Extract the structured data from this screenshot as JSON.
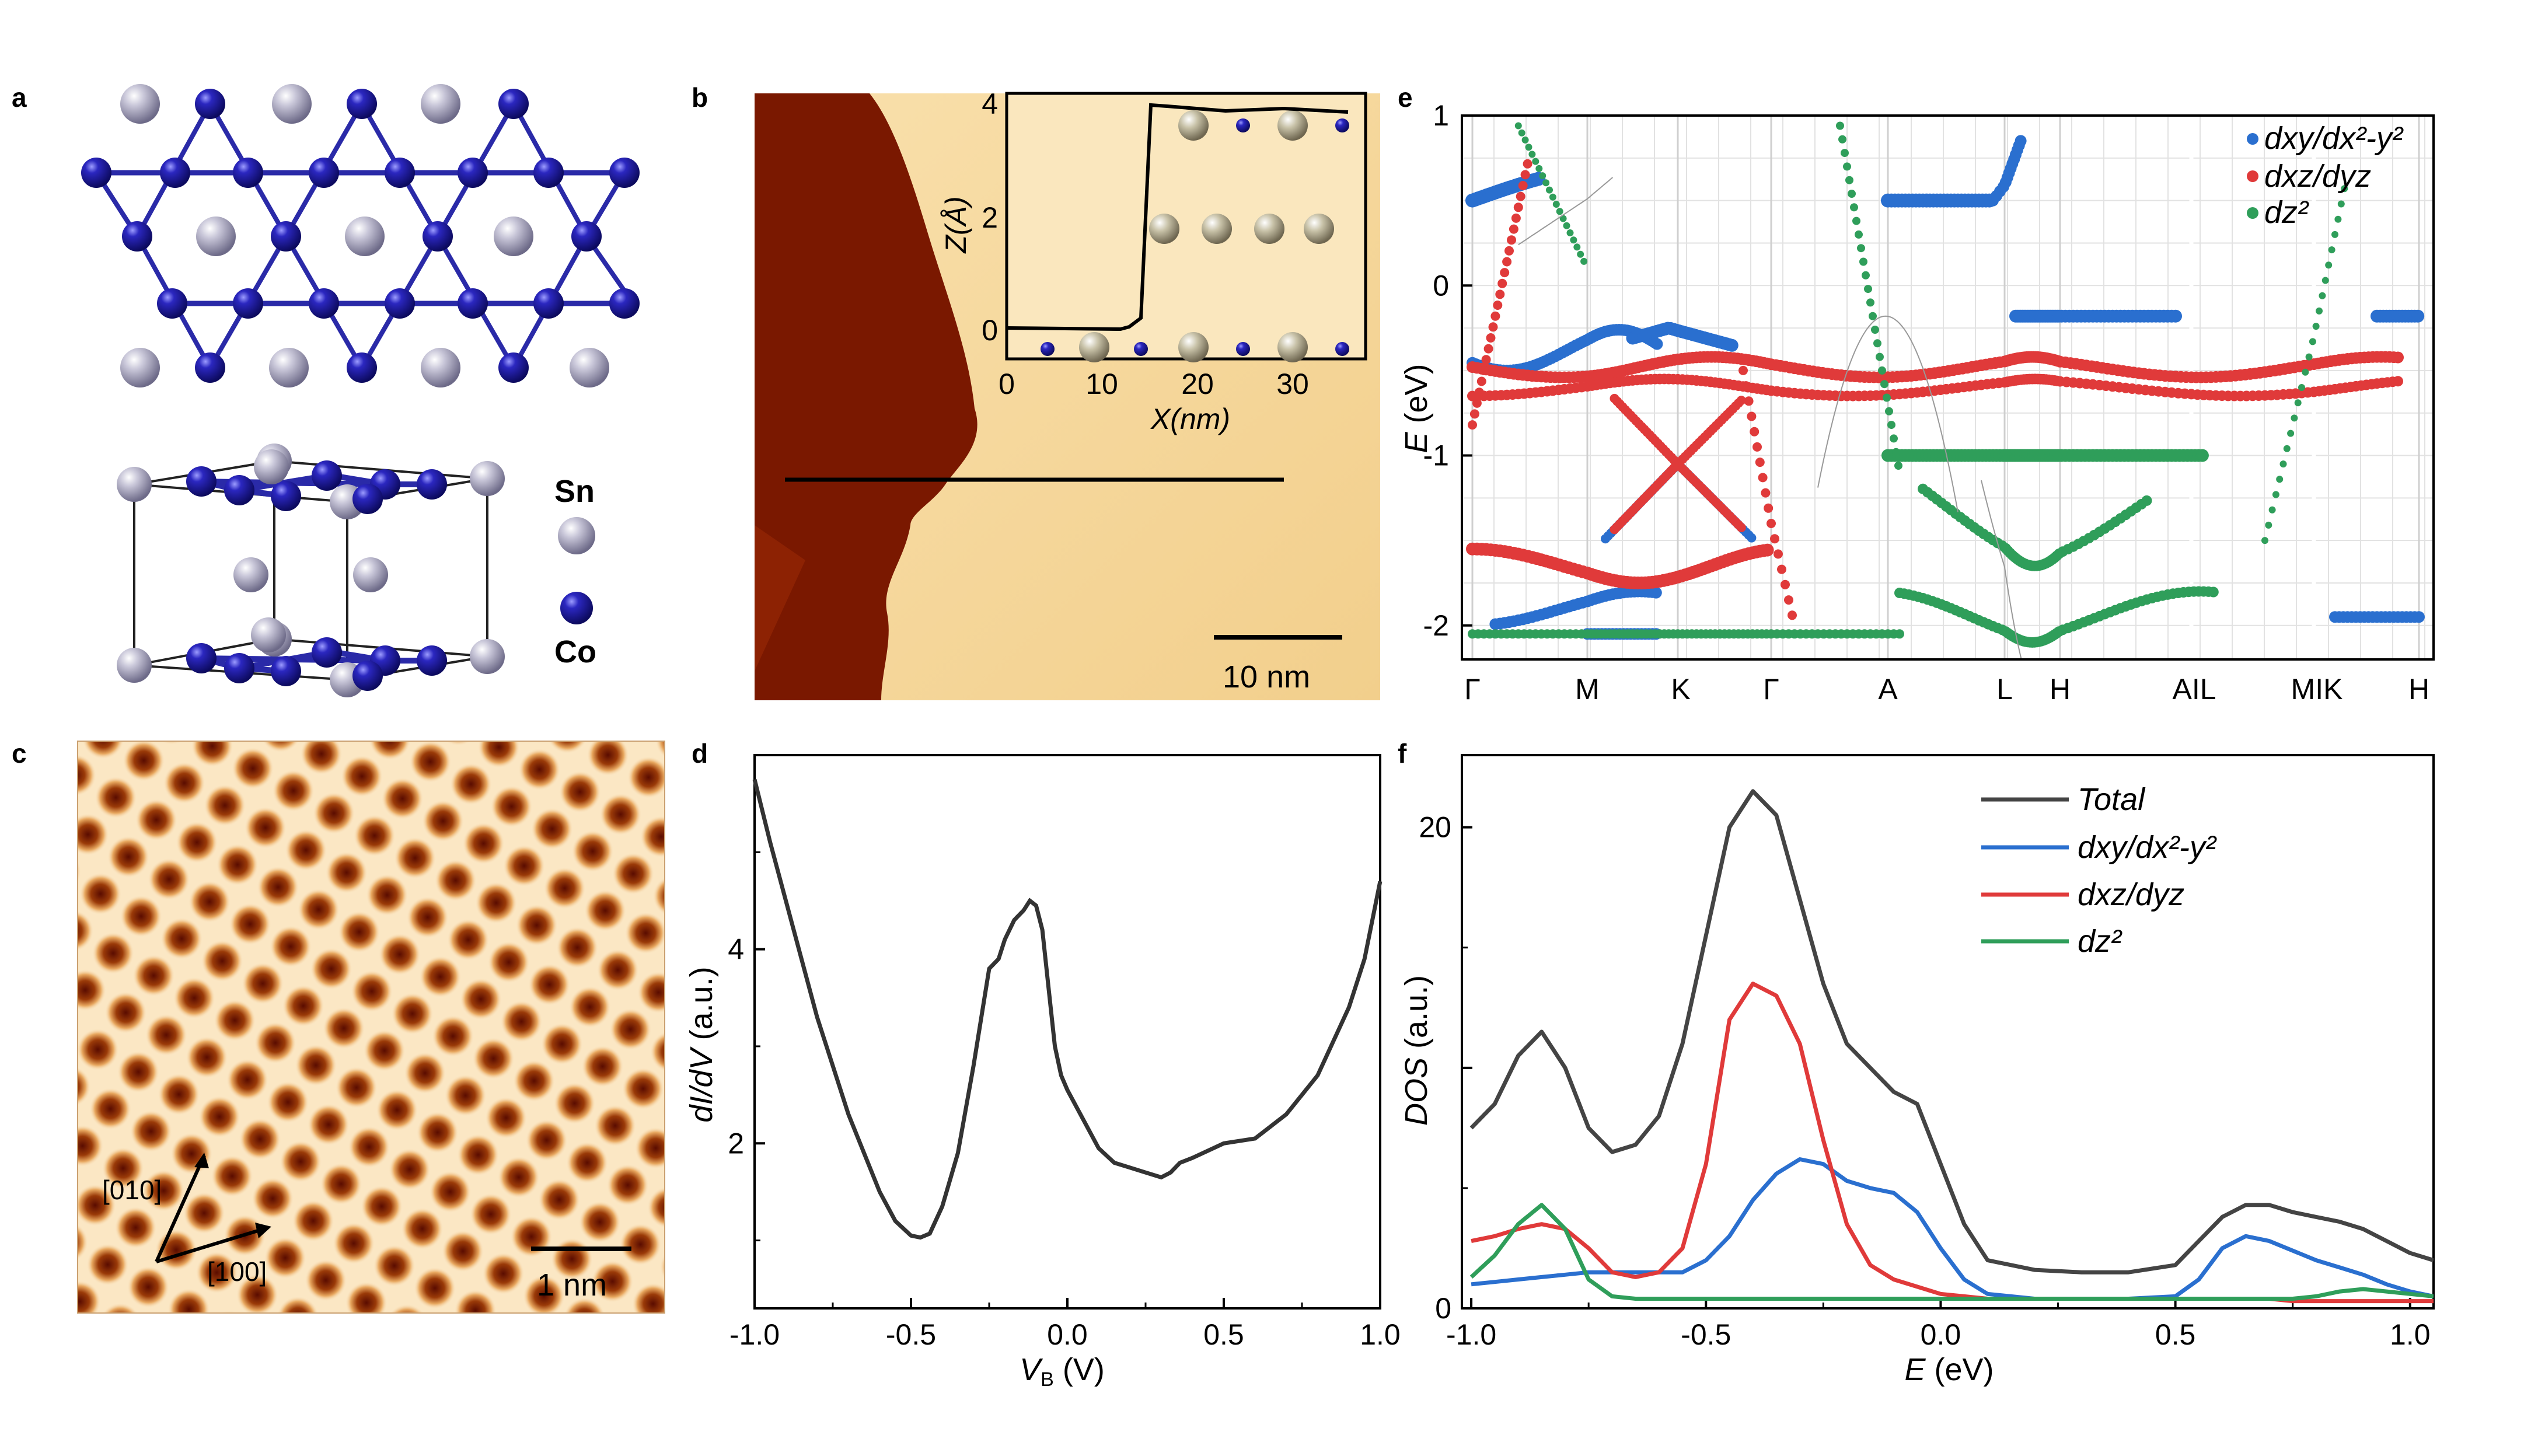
{
  "panel_labels": {
    "a": "a",
    "b": "b",
    "c": "c",
    "d": "d",
    "e": "e",
    "f": "f"
  },
  "panel_a": {
    "legend_sn": "Sn",
    "legend_co": "Co",
    "colors": {
      "sn": "#a9a7bf",
      "co": "#1f1aa0",
      "bond": "#2a2aa8"
    }
  },
  "panel_b": {
    "scale_bar": "10 nm",
    "inset": {
      "xlabel": "X(nm)",
      "ylabel": "Z(Å)",
      "xticks": [
        "0",
        "10",
        "20",
        "30"
      ],
      "yticks": [
        "0",
        "2",
        "4"
      ]
    },
    "colors": {
      "terrace_low": "#7a1800",
      "terrace_high": "#f5d9a0"
    }
  },
  "panel_c": {
    "scale_bar": "1 nm",
    "dir1": "[010]",
    "dir2": "[100]"
  },
  "panel_d": {
    "chart_data": {
      "type": "line",
      "xlabel": "V_B (V)",
      "ylabel": "dI/dV (a.u.)",
      "xlim": [
        -1.0,
        1.0
      ],
      "ylim": [
        0.3,
        6.0
      ],
      "xticks": [
        "-1.0",
        "-0.5",
        "0.0",
        "0.5",
        "1.0"
      ],
      "yticks": [
        "2",
        "4"
      ],
      "x": [
        -1.0,
        -0.95,
        -0.9,
        -0.85,
        -0.8,
        -0.75,
        -0.7,
        -0.65,
        -0.6,
        -0.55,
        -0.5,
        -0.47,
        -0.44,
        -0.4,
        -0.35,
        -0.3,
        -0.25,
        -0.22,
        -0.2,
        -0.17,
        -0.14,
        -0.12,
        -0.1,
        -0.08,
        -0.06,
        -0.04,
        -0.02,
        0.0,
        0.05,
        0.1,
        0.15,
        0.2,
        0.25,
        0.3,
        0.33,
        0.36,
        0.4,
        0.5,
        0.6,
        0.7,
        0.8,
        0.9,
        0.95,
        1.0
      ],
      "y": [
        5.75,
        5.1,
        4.5,
        3.9,
        3.3,
        2.8,
        2.3,
        1.9,
        1.5,
        1.2,
        1.05,
        1.03,
        1.07,
        1.35,
        1.9,
        2.8,
        3.8,
        3.9,
        4.1,
        4.3,
        4.4,
        4.5,
        4.45,
        4.2,
        3.6,
        3.0,
        2.7,
        2.55,
        2.25,
        1.95,
        1.8,
        1.75,
        1.7,
        1.65,
        1.7,
        1.8,
        1.85,
        2.0,
        2.05,
        2.3,
        2.7,
        3.4,
        3.9,
        4.7
      ],
      "colors": {
        "line": "#333333"
      }
    },
    "xlabel_main": "V",
    "xlabel_sub": "B",
    "xlabel_unit": " (V)",
    "ylabel_text": "dI/dV",
    "ylabel_unit": " (a.u.)"
  },
  "panel_e": {
    "chart_data": {
      "type": "scatter",
      "ylabel": "E (eV)",
      "ylim": [
        -2.2,
        1.0
      ],
      "yticks": [
        "1",
        "0",
        "-1",
        "-2"
      ],
      "kpoints": [
        "Γ",
        "M",
        "K",
        "Γ",
        "A",
        "L",
        "H",
        "A|L",
        "M|K",
        "H"
      ],
      "legend": [
        "dxy/dx²-y²",
        "dxz/dyz",
        "dz²"
      ],
      "colors": {
        "dxy": "#2a6fcf",
        "dxz": "#e03a3a",
        "dz2": "#2f9e5a",
        "grid": "#d8d8d8"
      },
      "series": [
        {
          "name": "dxy/dx²-y²",
          "values": [
            [
              0,
              0.5
            ],
            [
              0.4,
              0.55
            ],
            [
              0.8,
              0.6
            ],
            [
              2.2,
              -0.2
            ],
            [
              2.6,
              -0.22
            ],
            [
              4.0,
              -0.35
            ],
            [
              4.2,
              0.5
            ],
            [
              4.8,
              0.5
            ],
            [
              6.0,
              -0.18
            ],
            [
              6.4,
              -0.18
            ],
            [
              6.8,
              -0.25
            ],
            [
              8.2,
              -0.17
            ],
            [
              8.8,
              -0.17
            ]
          ]
        },
        {
          "name": "dxz/dyz",
          "values": [
            [
              0,
              -0.45
            ],
            [
              1.2,
              -0.55
            ],
            [
              2.0,
              -0.5
            ],
            [
              3.0,
              -0.5
            ],
            [
              4.0,
              -0.55
            ],
            [
              5.0,
              -0.6
            ],
            [
              6.0,
              -0.6
            ],
            [
              7.0,
              -0.55
            ],
            [
              8.0,
              -0.5
            ],
            [
              8.8,
              -0.55
            ]
          ]
        },
        {
          "name": "dz²",
          "values": [
            [
              4.2,
              -1.0
            ],
            [
              5.0,
              -1.0
            ],
            [
              6.0,
              -1.0
            ],
            [
              6.5,
              -1.0
            ],
            [
              7.0,
              -1.0
            ],
            [
              4.2,
              -2.1
            ],
            [
              6.0,
              -1.9
            ],
            [
              7.0,
              -1.8
            ]
          ]
        }
      ]
    },
    "ylabel_main": "E",
    "ylabel_unit": " (eV)",
    "legend_labels": {
      "dxy": "dxy/dx²-y²",
      "dxz": "dxz/dyz",
      "dz2": "dz²"
    },
    "kpoint_labels": [
      "Γ",
      "M",
      "K",
      "Γ",
      "A",
      "L",
      "H",
      "AIL",
      "MIK",
      "H"
    ]
  },
  "panel_f": {
    "chart_data": {
      "type": "line",
      "xlabel": "E (eV)",
      "ylabel": "DOS (a.u.)",
      "xlim": [
        -1.02,
        1.05
      ],
      "ylim": [
        0,
        23
      ],
      "xticks": [
        "-1.0",
        "-0.5",
        "0.0",
        "0.5",
        "1.0"
      ],
      "yticks": [
        "0",
        "10",
        "20"
      ],
      "x": [
        -1.0,
        -0.95,
        -0.9,
        -0.85,
        -0.8,
        -0.75,
        -0.7,
        -0.65,
        -0.6,
        -0.55,
        -0.5,
        -0.45,
        -0.4,
        -0.35,
        -0.3,
        -0.25,
        -0.2,
        -0.15,
        -0.1,
        -0.05,
        0.0,
        0.05,
        0.1,
        0.2,
        0.3,
        0.4,
        0.5,
        0.55,
        0.6,
        0.65,
        0.7,
        0.75,
        0.8,
        0.85,
        0.9,
        0.95,
        1.0,
        1.05
      ],
      "series": [
        {
          "name": "Total",
          "values": [
            7.5,
            8.5,
            10.5,
            11.5,
            10.0,
            7.5,
            6.5,
            6.8,
            8.0,
            11.0,
            15.5,
            20.0,
            21.5,
            20.5,
            17.0,
            13.5,
            11.0,
            10.0,
            9.0,
            8.5,
            6.0,
            3.5,
            2.0,
            1.6,
            1.5,
            1.5,
            1.8,
            2.8,
            3.8,
            4.3,
            4.3,
            4.0,
            3.8,
            3.6,
            3.3,
            2.8,
            2.3,
            2.0
          ]
        },
        {
          "name": "dxy/dx²-y²",
          "values": [
            1.0,
            1.1,
            1.2,
            1.3,
            1.4,
            1.5,
            1.5,
            1.5,
            1.5,
            1.5,
            2.0,
            3.0,
            4.5,
            5.6,
            6.2,
            6.0,
            5.3,
            5.0,
            4.8,
            4.0,
            2.5,
            1.2,
            0.6,
            0.4,
            0.4,
            0.4,
            0.5,
            1.2,
            2.5,
            3.0,
            2.8,
            2.4,
            2.0,
            1.7,
            1.4,
            1.0,
            0.7,
            0.5
          ]
        },
        {
          "name": "dxz/dyz",
          "values": [
            2.8,
            3.0,
            3.3,
            3.5,
            3.3,
            2.5,
            1.5,
            1.3,
            1.5,
            2.5,
            6.0,
            12.0,
            13.5,
            13.0,
            11.0,
            7.0,
            3.5,
            1.8,
            1.2,
            0.9,
            0.6,
            0.5,
            0.4,
            0.4,
            0.4,
            0.4,
            0.4,
            0.4,
            0.4,
            0.4,
            0.4,
            0.3,
            0.3,
            0.3,
            0.3,
            0.3,
            0.3,
            0.3
          ]
        },
        {
          "name": "dz²",
          "values": [
            1.3,
            2.2,
            3.5,
            4.3,
            3.3,
            1.2,
            0.5,
            0.4,
            0.4,
            0.4,
            0.4,
            0.4,
            0.4,
            0.4,
            0.4,
            0.4,
            0.4,
            0.4,
            0.4,
            0.4,
            0.4,
            0.4,
            0.4,
            0.4,
            0.4,
            0.4,
            0.4,
            0.4,
            0.4,
            0.4,
            0.4,
            0.4,
            0.5,
            0.7,
            0.8,
            0.7,
            0.6,
            0.5
          ]
        }
      ],
      "colors": {
        "Total": "#444444",
        "dxy": "#2a6fcf",
        "dxz": "#e03a3a",
        "dz2": "#2f9e5a"
      }
    },
    "xlabel_main": "E",
    "xlabel_unit": " (eV)",
    "ylabel_main": "DOS",
    "ylabel_unit": " (a.u.)",
    "legend_labels": {
      "total": "Total",
      "dxy": "dxy/dx²-y²",
      "dxz": "dxz/dyz",
      "dz2": "dz²"
    }
  }
}
